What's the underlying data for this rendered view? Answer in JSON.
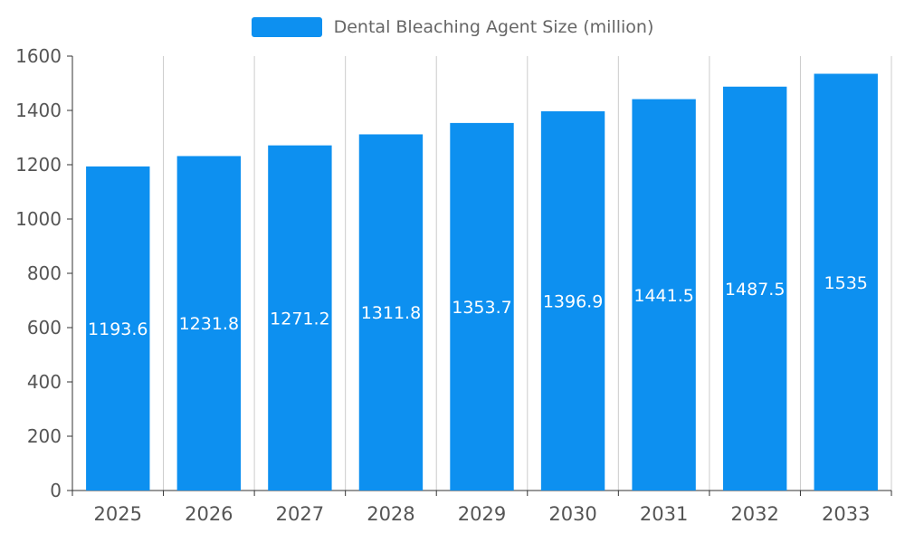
{
  "chart_data": {
    "type": "bar",
    "title": "Dental Bleaching Agent Size (million)",
    "categories": [
      "2025",
      "2026",
      "2027",
      "2028",
      "2029",
      "2030",
      "2031",
      "2032",
      "2033"
    ],
    "values": [
      1193.6,
      1231.8,
      1271.2,
      1311.8,
      1353.7,
      1396.9,
      1441.5,
      1487.5,
      1535
    ],
    "xlabel": "",
    "ylabel": "",
    "ylim": [
      0,
      1600
    ],
    "ytick_step": 200,
    "ytick_labels": [
      "0",
      "200",
      "400",
      "600",
      "800",
      "1000",
      "1200",
      "1400",
      "1600"
    ],
    "legend_position": "top",
    "grid": "vertical",
    "bar_color": "#0d90f0",
    "bar_label_color": "#ffffff",
    "axis_color": "#333333",
    "grid_color": "#cccccc",
    "tick_text_color": "#555555",
    "legend_text_color": "#666666"
  }
}
